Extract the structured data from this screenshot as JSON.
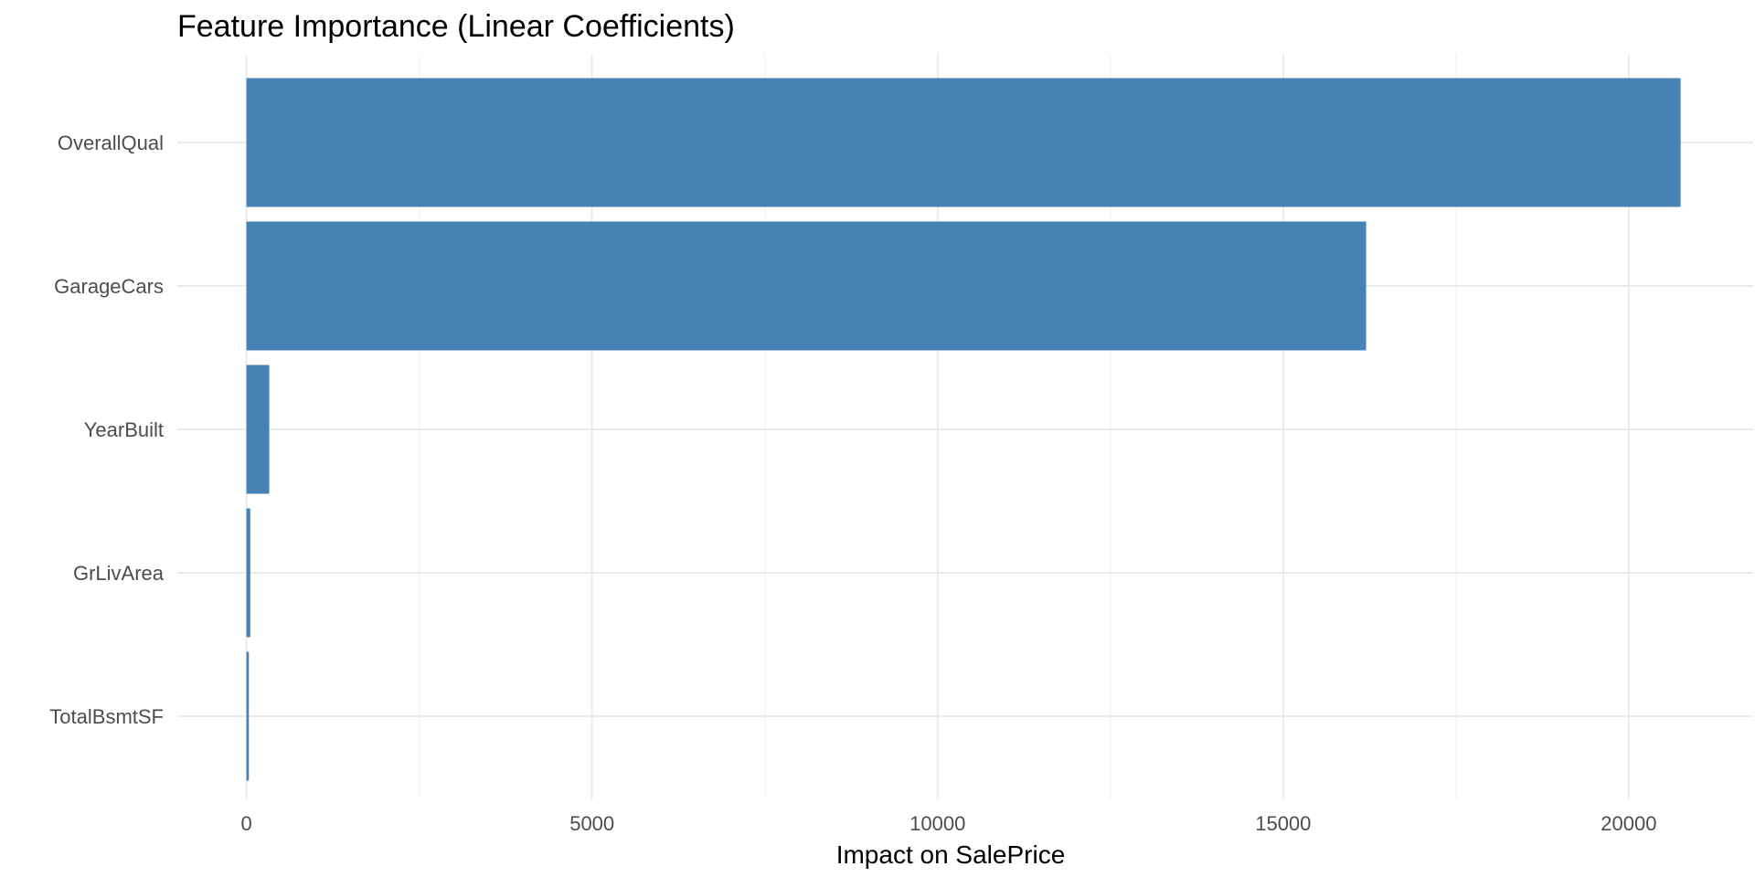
{
  "chart_data": {
    "type": "bar",
    "orientation": "horizontal",
    "title": "Feature Importance (Linear Coefficients)",
    "xlabel": "Impact on SalePrice",
    "ylabel": "",
    "categories": [
      "OverallQual",
      "GarageCars",
      "YearBuilt",
      "GrLivArea",
      "TotalBsmtSF"
    ],
    "values": [
      20750,
      16200,
      330,
      55,
      35
    ],
    "xlim": [
      -1000,
      21800
    ],
    "xticks": [
      0,
      5000,
      10000,
      15000,
      20000
    ],
    "xtick_labels": [
      "0",
      "5000",
      "10000",
      "15000",
      "20000"
    ],
    "bar_color": "#4682b4",
    "grid": true,
    "legend": "none"
  }
}
